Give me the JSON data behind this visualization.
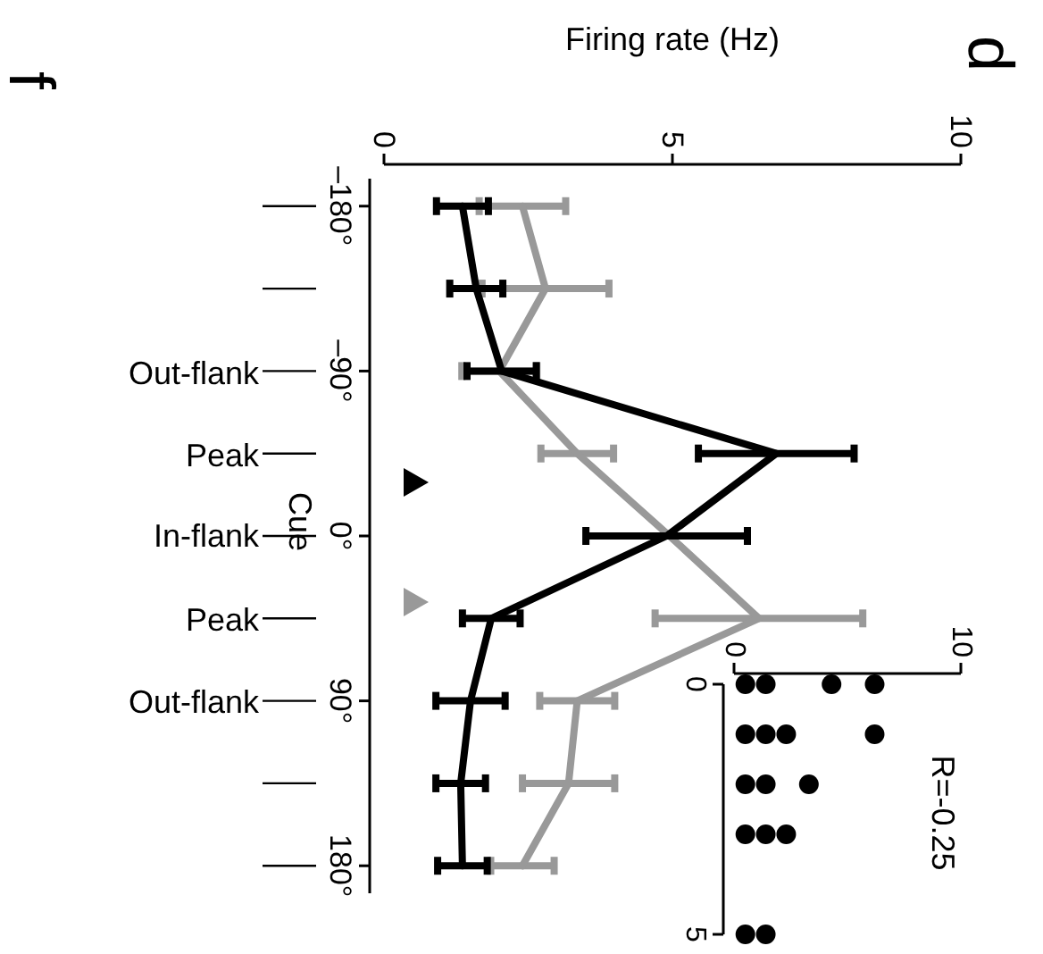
{
  "chart_data": [
    {
      "type": "line",
      "xlabel": "Firing rate (Hz)",
      "ylabel": "Cue",
      "xlim": [
        0,
        10
      ],
      "xticks": [
        0,
        5,
        10
      ],
      "ylim": [
        195,
        -195
      ],
      "yticks": [
        {
          "value": -180,
          "label": "–180°"
        },
        {
          "value": -90,
          "label": "–90°"
        },
        {
          "value": 0,
          "label": "0°"
        },
        {
          "value": 90,
          "label": "90°"
        },
        {
          "value": 180,
          "label": "180°"
        }
      ],
      "marker": "none",
      "line_style": "solid",
      "series": [
        {
          "color": "#999999",
          "x": [
            2.4,
            2.8,
            2.0,
            3.35,
            4.95,
            6.5,
            3.35,
            3.2,
            2.4
          ],
          "values": [
            -180,
            -135,
            -90,
            -45,
            0,
            45,
            90,
            135,
            180
          ],
          "xerrors": [
            0.75,
            1.1,
            0.65,
            0.63,
            null,
            1.8,
            0.65,
            0.8,
            0.55
          ]
        },
        {
          "color": "#000000",
          "x": [
            1.36,
            1.6,
            2.04,
            6.8,
            4.9,
            1.86,
            1.5,
            1.33,
            1.36
          ],
          "values": [
            -180,
            -135,
            -90,
            -45,
            0,
            45,
            90,
            135,
            180
          ],
          "xerrors": [
            0.45,
            0.46,
            0.6,
            1.35,
            1.4,
            0.5,
            0.6,
            0.43,
            0.43
          ]
        }
      ],
      "annotations": [
        "Out-flank",
        "Peak",
        "In-flank",
        "Peak",
        "Out-flank",
        "d",
        "f"
      ]
    },
    {
      "type": "scatter",
      "xlim": [
        0,
        10
      ],
      "xticks": [
        0,
        10
      ],
      "ylim": [
        5,
        0
      ],
      "yticks": [
        0,
        5
      ],
      "marker": "circle",
      "series": [
        {
          "color": "#000000",
          "x": [
            0.5,
            1.4,
            4.3,
            6.2,
            0.5,
            1.4,
            2.3,
            6.2,
            0.5,
            1.4,
            3.3,
            0.5,
            1.4,
            2.3,
            0.5,
            1.4
          ],
          "values": [
            0,
            0,
            0,
            0,
            1,
            1,
            1,
            1,
            2,
            2,
            2,
            3,
            3,
            3,
            5,
            5
          ]
        }
      ],
      "annotations": [
        "R=-0.25"
      ]
    }
  ]
}
